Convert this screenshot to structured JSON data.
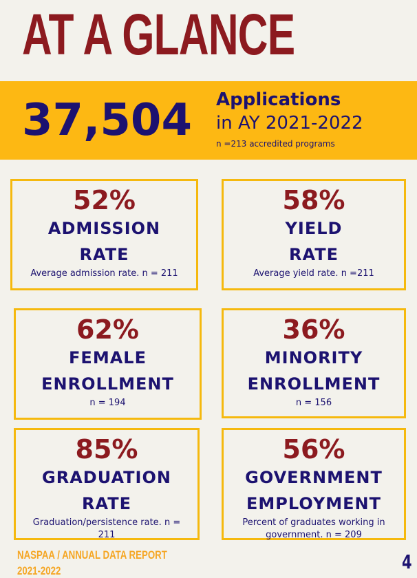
{
  "header": {
    "title": "AT A GLANCE"
  },
  "banner": {
    "number": "37,504",
    "heading": "Applications",
    "subheading": "in AY 2021-2022",
    "note": "n =213 accredited programs"
  },
  "cards": [
    {
      "value": "52%",
      "label": [
        "ADMISSION",
        "RATE"
      ],
      "note": "Average admission rate. n = 211"
    },
    {
      "value": "58%",
      "label": [
        "YIELD",
        "RATE"
      ],
      "note": "Average yield rate. n =211"
    },
    {
      "value": "62%",
      "label": [
        "FEMALE",
        "ENROLLMENT"
      ],
      "note": "n = 194"
    },
    {
      "value": "36%",
      "label": [
        "MINORITY",
        "ENROLLMENT"
      ],
      "note": "n = 156"
    },
    {
      "value": "85%",
      "label": [
        "GRADUATION",
        "RATE"
      ],
      "note": "Graduation/persistence rate. n = 211"
    },
    {
      "value": "56%",
      "label": [
        "GOVERNMENT",
        "EMPLOYMENT"
      ],
      "note": "Percent of graduates working in government. n = 209"
    }
  ],
  "footer": {
    "report": "NASPAA / ANNUAL DATA REPORT",
    "year": "2021-2022",
    "page": "4"
  }
}
